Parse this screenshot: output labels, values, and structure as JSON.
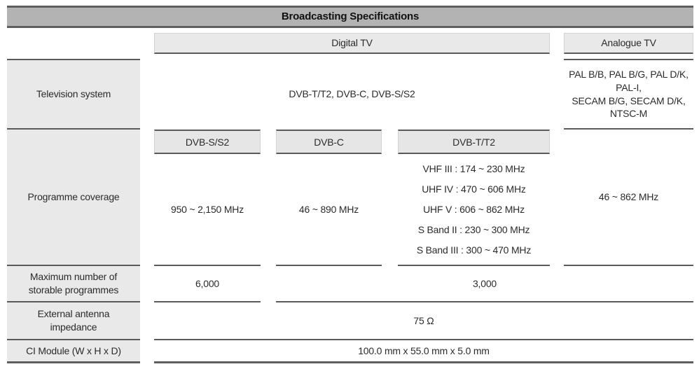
{
  "title": "Broadcasting Specifications",
  "headers": {
    "digital": "Digital TV",
    "analogue": "Analogue TV"
  },
  "rows": {
    "television_system": {
      "label": "Television system",
      "digital_value": "DVB-T/T2, DVB-C, DVB-S/S2",
      "analogue_line1": "PAL B/B, PAL B/G, PAL D/K, PAL-I,",
      "analogue_line2": "SECAM B/G, SECAM D/K, NTSC-M"
    },
    "programme_coverage": {
      "label": "Programme coverage",
      "sub_headers": {
        "dvb_s": "DVB-S/S2",
        "dvb_c": "DVB-C",
        "dvb_t": "DVB-T/T2"
      },
      "dvb_s_value": "950 ~ 2,150 MHz",
      "dvb_c_value": "46 ~ 890 MHz",
      "dvb_t_values": [
        "VHF III : 174 ~ 230 MHz",
        "UHF IV : 470 ~ 606 MHz",
        "UHF V : 606 ~ 862 MHz",
        "S Band II : 230 ~ 300 MHz",
        "S Band III : 300 ~ 470 MHz"
      ],
      "analogue_value": "46 ~ 862 MHz"
    },
    "max_storable": {
      "label": "Maximum number of storable programmes",
      "dvb_s_value": "6,000",
      "other_value": "3,000"
    },
    "antenna_impedance": {
      "label": "External antenna impedance",
      "value": "75 Ω"
    },
    "ci_module": {
      "label": "CI Module (W x H x D)",
      "value": "100.0 mm x 55.0 mm x 5.0 mm"
    }
  },
  "colors": {
    "title_bg": "#b3b3b3",
    "header_bg": "#e9e9e9",
    "label_bg": "#e9e9e9",
    "subheader_bg": "#e6e6e6",
    "border_dark": "#5a5a5a",
    "text": "#2b2b2b"
  }
}
